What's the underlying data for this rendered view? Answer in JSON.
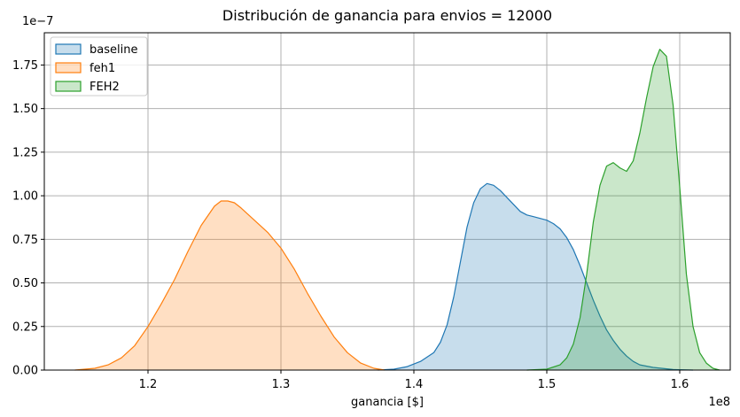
{
  "chart_data": {
    "type": "area",
    "title": "Distribución de ganancia para envios = 12000",
    "xlabel": "ganancia [$]",
    "ylabel": "",
    "x_offset_label": "1e8",
    "y_offset_label": "1e−7",
    "xlim": [
      1.122,
      1.638
    ],
    "ylim": [
      0,
      1.935
    ],
    "xticks": [
      1.2,
      1.3,
      1.4,
      1.5,
      1.6
    ],
    "yticks": [
      0.0,
      0.25,
      0.5,
      0.75,
      1.0,
      1.25,
      1.5,
      1.75
    ],
    "xtick_labels": [
      "1.2",
      "1.3",
      "1.4",
      "1.5",
      "1.6"
    ],
    "ytick_labels": [
      "0.00",
      "0.25",
      "0.50",
      "0.75",
      "1.00",
      "1.25",
      "1.50",
      "1.75"
    ],
    "grid": true,
    "legend_position": "top-left",
    "series": [
      {
        "name": "baseline",
        "color": "#1f77b4",
        "points": [
          [
            1.373,
            0.0
          ],
          [
            1.385,
            0.005
          ],
          [
            1.395,
            0.02
          ],
          [
            1.405,
            0.05
          ],
          [
            1.415,
            0.1
          ],
          [
            1.42,
            0.16
          ],
          [
            1.425,
            0.26
          ],
          [
            1.43,
            0.42
          ],
          [
            1.435,
            0.62
          ],
          [
            1.44,
            0.82
          ],
          [
            1.445,
            0.96
          ],
          [
            1.45,
            1.04
          ],
          [
            1.455,
            1.07
          ],
          [
            1.46,
            1.06
          ],
          [
            1.465,
            1.03
          ],
          [
            1.47,
            0.99
          ],
          [
            1.475,
            0.95
          ],
          [
            1.48,
            0.91
          ],
          [
            1.485,
            0.89
          ],
          [
            1.49,
            0.88
          ],
          [
            1.495,
            0.87
          ],
          [
            1.5,
            0.86
          ],
          [
            1.505,
            0.84
          ],
          [
            1.51,
            0.81
          ],
          [
            1.515,
            0.76
          ],
          [
            1.52,
            0.69
          ],
          [
            1.525,
            0.6
          ],
          [
            1.53,
            0.5
          ],
          [
            1.535,
            0.4
          ],
          [
            1.54,
            0.31
          ],
          [
            1.545,
            0.23
          ],
          [
            1.55,
            0.17
          ],
          [
            1.555,
            0.12
          ],
          [
            1.56,
            0.08
          ],
          [
            1.565,
            0.05
          ],
          [
            1.57,
            0.03
          ],
          [
            1.58,
            0.015
          ],
          [
            1.595,
            0.003
          ],
          [
            1.61,
            0.0
          ]
        ]
      },
      {
        "name": "feh1",
        "color": "#ff7f0e",
        "points": [
          [
            1.145,
            0.0
          ],
          [
            1.16,
            0.01
          ],
          [
            1.17,
            0.03
          ],
          [
            1.18,
            0.07
          ],
          [
            1.19,
            0.14
          ],
          [
            1.2,
            0.25
          ],
          [
            1.21,
            0.38
          ],
          [
            1.22,
            0.52
          ],
          [
            1.23,
            0.68
          ],
          [
            1.24,
            0.83
          ],
          [
            1.25,
            0.94
          ],
          [
            1.255,
            0.97
          ],
          [
            1.26,
            0.97
          ],
          [
            1.265,
            0.96
          ],
          [
            1.27,
            0.93
          ],
          [
            1.28,
            0.86
          ],
          [
            1.29,
            0.79
          ],
          [
            1.3,
            0.7
          ],
          [
            1.31,
            0.58
          ],
          [
            1.32,
            0.44
          ],
          [
            1.33,
            0.31
          ],
          [
            1.34,
            0.19
          ],
          [
            1.35,
            0.1
          ],
          [
            1.36,
            0.04
          ],
          [
            1.37,
            0.01
          ],
          [
            1.378,
            0.0
          ]
        ]
      },
      {
        "name": "FEH2",
        "color": "#2ca02c",
        "points": [
          [
            1.485,
            0.0
          ],
          [
            1.5,
            0.005
          ],
          [
            1.51,
            0.03
          ],
          [
            1.515,
            0.07
          ],
          [
            1.52,
            0.15
          ],
          [
            1.525,
            0.3
          ],
          [
            1.53,
            0.55
          ],
          [
            1.535,
            0.85
          ],
          [
            1.54,
            1.06
          ],
          [
            1.545,
            1.17
          ],
          [
            1.55,
            1.19
          ],
          [
            1.555,
            1.16
          ],
          [
            1.56,
            1.14
          ],
          [
            1.565,
            1.2
          ],
          [
            1.57,
            1.36
          ],
          [
            1.575,
            1.56
          ],
          [
            1.58,
            1.74
          ],
          [
            1.585,
            1.84
          ],
          [
            1.59,
            1.8
          ],
          [
            1.595,
            1.52
          ],
          [
            1.6,
            1.05
          ],
          [
            1.605,
            0.55
          ],
          [
            1.61,
            0.25
          ],
          [
            1.615,
            0.1
          ],
          [
            1.62,
            0.04
          ],
          [
            1.625,
            0.01
          ],
          [
            1.63,
            0.0
          ]
        ]
      }
    ]
  }
}
